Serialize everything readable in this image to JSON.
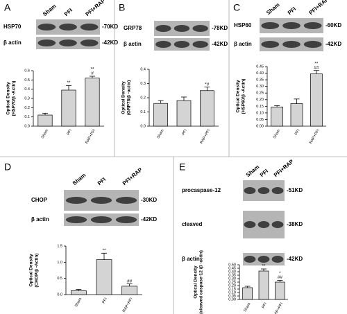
{
  "chart_data": [
    {
      "type": "bar",
      "panel_label": "A",
      "blot": {
        "lanes": [
          "Sham",
          "PFI",
          "PFI+RAP"
        ],
        "rows": [
          {
            "name": "HSP70",
            "size": "-70KD"
          },
          {
            "name": "β actin",
            "size": "-42KD"
          }
        ]
      },
      "ylabel": [
        "Optical Density",
        "(HSP70/β -Actin)"
      ],
      "categories": [
        "Sham",
        "PFI",
        "RAP+PFI"
      ],
      "values": [
        0.12,
        0.39,
        0.52
      ],
      "errors": [
        0.02,
        0.05,
        0.02
      ],
      "value_annotations": [
        null,
        [
          "**"
        ],
        [
          "**",
          "#"
        ]
      ],
      "color": "#d4d4d4",
      "ylim": [
        0,
        0.6
      ],
      "yticks": [
        {
          "value": 0,
          "label": "0.0"
        },
        {
          "value": 0.1,
          "label": "0.1"
        },
        {
          "value": 0.2,
          "label": "0.2"
        },
        {
          "value": 0.3,
          "label": "0.3"
        },
        {
          "value": 0.4,
          "label": "0.4"
        },
        {
          "value": 0.5,
          "label": "0.5"
        },
        {
          "value": 0.6,
          "label": "0.6"
        }
      ]
    },
    {
      "type": "bar",
      "panel_label": "B",
      "blot": {
        "rows": [
          {
            "name": "GRP78",
            "size": "-78KD"
          },
          {
            "name": "β actin",
            "size": "-42KD"
          }
        ]
      },
      "ylabel": [
        "Optical Density",
        "(GRP78/β -actin)"
      ],
      "categories": [
        "Sham",
        "PFI",
        "RAP+PFI"
      ],
      "values": [
        0.16,
        0.18,
        0.25
      ],
      "errors": [
        0.02,
        0.025,
        0.025
      ],
      "value_annotations": [
        null,
        null,
        [
          "*#"
        ]
      ],
      "color": "#d4d4d4",
      "ylim": [
        0,
        0.4
      ],
      "yticks": [
        {
          "value": 0,
          "label": "0.0"
        },
        {
          "value": 0.1,
          "label": "0.1"
        },
        {
          "value": 0.2,
          "label": "0.2"
        },
        {
          "value": 0.3,
          "label": "0.3"
        },
        {
          "value": 0.4,
          "label": "0.4"
        }
      ]
    },
    {
      "type": "bar",
      "panel_label": "C",
      "blot": {
        "lanes": [
          "Sham",
          "PFI",
          "PFI+RAP"
        ],
        "rows": [
          {
            "name": "HSP60",
            "size": "-60KD"
          },
          {
            "name": "β actin",
            "size": "-42KD"
          }
        ]
      },
      "ylabel": [
        "Optical Density",
        "(HSP60/β -Actin)"
      ],
      "categories": [
        "Sham",
        "PFI",
        "RAP+PFI"
      ],
      "values": [
        0.145,
        0.17,
        0.395
      ],
      "errors": [
        0.01,
        0.035,
        0.025
      ],
      "value_annotations": [
        null,
        null,
        [
          "**",
          "##"
        ]
      ],
      "color": "#d4d4d4",
      "ylim": [
        0,
        0.45
      ],
      "yticks": [
        {
          "value": 0,
          "label": "0.00"
        },
        {
          "value": 0.05,
          "label": "0.05"
        },
        {
          "value": 0.1,
          "label": "0.10"
        },
        {
          "value": 0.15,
          "label": "0.15"
        },
        {
          "value": 0.2,
          "label": "0.20"
        },
        {
          "value": 0.25,
          "label": "0.25"
        },
        {
          "value": 0.3,
          "label": "0.30"
        },
        {
          "value": 0.35,
          "label": "0.35"
        },
        {
          "value": 0.4,
          "label": "0.40"
        },
        {
          "value": 0.45,
          "label": "0.45"
        }
      ]
    },
    {
      "type": "bar",
      "panel_label": "D",
      "blot": {
        "lanes": [
          "Sham",
          "PFI",
          "PFI+RAP"
        ],
        "rows": [
          {
            "name": "CHOP",
            "size": "-30KD"
          },
          {
            "name": "β actin",
            "size": "-42KD"
          }
        ]
      },
      "ylabel": [
        "Optical Density",
        "(CHOP/β -Actin)"
      ],
      "categories": [
        "Sham",
        "PFI",
        "RAP+PFI"
      ],
      "values": [
        0.12,
        1.08,
        0.26
      ],
      "errors": [
        0.04,
        0.2,
        0.07
      ],
      "value_annotations": [
        null,
        [
          "**"
        ],
        [
          "##"
        ]
      ],
      "color": "#d4d4d4",
      "ylim": [
        0,
        1.5
      ],
      "yticks": [
        {
          "value": 0,
          "label": "0.0"
        },
        {
          "value": 0.5,
          "label": "0.5"
        },
        {
          "value": 1,
          "label": "1.0"
        },
        {
          "value": 1.5,
          "label": "1.5"
        }
      ]
    },
    {
      "type": "bar",
      "panel_label": "E",
      "blot": {
        "lanes": [
          "Sham",
          "PFI",
          "PFI+RAP"
        ],
        "rows": [
          {
            "name": "procaspase-12",
            "size": "-51KD"
          },
          {
            "name": "cleaved",
            "size": "-38KD"
          },
          {
            "name": "β actin",
            "size": "-42KD"
          }
        ]
      },
      "ylabel": [
        "Optical Density",
        "(cleaved caspase-12 /β -actin)"
      ],
      "categories": [
        "Sham",
        "PFI",
        "RAP+PFI"
      ],
      "values": [
        0.17,
        0.41,
        0.25
      ],
      "errors": [
        0.02,
        0.03,
        0.025
      ],
      "value_annotations": [
        null,
        [
          "**"
        ],
        [
          "*",
          "##"
        ]
      ],
      "color": "#d4d4d4",
      "ylim": [
        0,
        0.5
      ],
      "yticks": [
        {
          "value": 0,
          "label": "0.00"
        },
        {
          "value": 0.05,
          "label": "0.05"
        },
        {
          "value": 0.1,
          "label": "0.10"
        },
        {
          "value": 0.15,
          "label": "0.15"
        },
        {
          "value": 0.2,
          "label": "0.20"
        },
        {
          "value": 0.25,
          "label": "0.25"
        },
        {
          "value": 0.3,
          "label": "0.30"
        },
        {
          "value": 0.35,
          "label": "0.35"
        },
        {
          "value": 0.4,
          "label": "0.40"
        },
        {
          "value": 0.45,
          "label": "0.45"
        },
        {
          "value": 0.5,
          "label": "0.50"
        }
      ]
    }
  ]
}
